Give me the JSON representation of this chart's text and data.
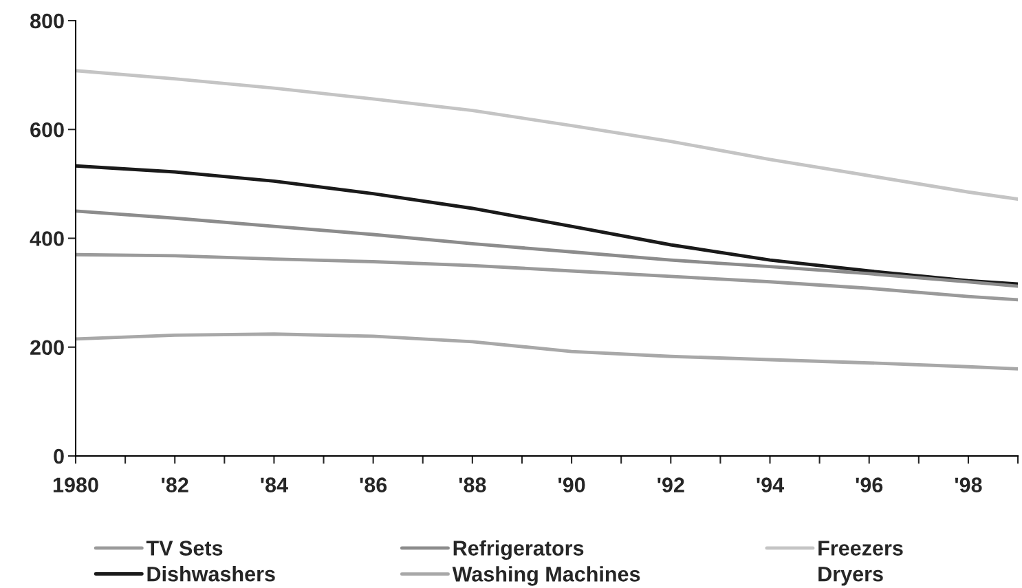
{
  "chart_data": {
    "type": "line",
    "x": [
      1980,
      1982,
      1984,
      1986,
      1988,
      1990,
      1992,
      1994,
      1996,
      1998,
      1999
    ],
    "series": [
      {
        "name": "TV Sets",
        "color": "#9a9a9a",
        "values": [
          370,
          368,
          362,
          357,
          350,
          340,
          330,
          320,
          308,
          293,
          287
        ]
      },
      {
        "name": "Dishwashers",
        "color": "#1a1a1a",
        "values": [
          533,
          522,
          505,
          482,
          455,
          422,
          388,
          360,
          340,
          322,
          316
        ]
      },
      {
        "name": "Refrigerators",
        "color": "#8c8c8c",
        "values": [
          450,
          437,
          422,
          407,
          390,
          375,
          360,
          348,
          335,
          320,
          312
        ]
      },
      {
        "name": "Washing Machines",
        "color": "#a8a8a8",
        "values": [
          215,
          222,
          224,
          220,
          210,
          192,
          183,
          177,
          171,
          164,
          160
        ]
      },
      {
        "name": "Freezers",
        "color": "#c4c4c4",
        "values": [
          708,
          693,
          676,
          656,
          635,
          607,
          578,
          545,
          515,
          485,
          472
        ]
      },
      {
        "name": "Dryers",
        "values": [
          null,
          null,
          null,
          null,
          null,
          null,
          null,
          null,
          null,
          null,
          null
        ]
      }
    ],
    "xlim": [
      1980,
      1999
    ],
    "xticks": [
      {
        "value": 1980,
        "label": "1980"
      },
      {
        "value": 1981,
        "label": null
      },
      {
        "value": 1982,
        "label": "'82"
      },
      {
        "value": 1983,
        "label": null
      },
      {
        "value": 1984,
        "label": "'84"
      },
      {
        "value": 1985,
        "label": null
      },
      {
        "value": 1986,
        "label": "'86"
      },
      {
        "value": 1987,
        "label": null
      },
      {
        "value": 1988,
        "label": "'88"
      },
      {
        "value": 1989,
        "label": null
      },
      {
        "value": 1990,
        "label": "'90"
      },
      {
        "value": 1991,
        "label": null
      },
      {
        "value": 1992,
        "label": "'92"
      },
      {
        "value": 1993,
        "label": null
      },
      {
        "value": 1994,
        "label": "'94"
      },
      {
        "value": 1995,
        "label": null
      },
      {
        "value": 1996,
        "label": "'96"
      },
      {
        "value": 1997,
        "label": null
      },
      {
        "value": 1998,
        "label": "'98"
      },
      {
        "value": 1999,
        "label": null
      }
    ],
    "ylim": [
      0,
      800
    ],
    "yticks": [
      0,
      200,
      400,
      600,
      800
    ],
    "grid": false,
    "legend": "bottom",
    "marker": "none",
    "line_style": "solid"
  }
}
